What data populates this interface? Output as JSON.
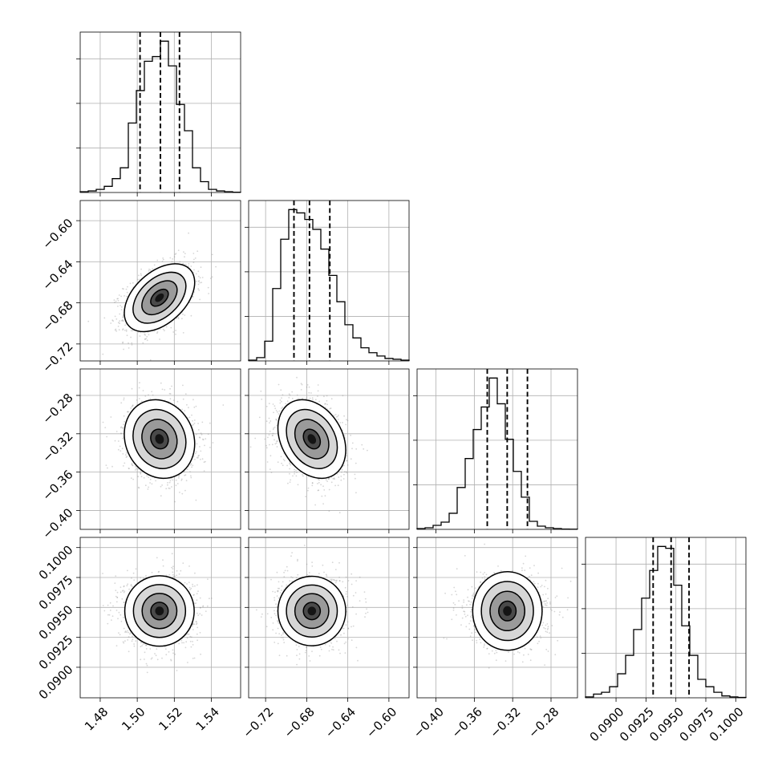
{
  "chart_data": {
    "type": "scatter",
    "parameters": [
      {
        "range": [
          1.4692,
          1.5558
        ],
        "ticks": [
          1.48,
          1.5,
          1.52,
          1.54
        ],
        "ticklabels": [
          "1.48",
          "1.50",
          "1.52",
          "1.54"
        ],
        "mean": 1.512,
        "sd": 0.0095,
        "quantiles": [
          1.5015,
          1.5125,
          1.5228
        ]
      },
      {
        "range": [
          -0.7365,
          -0.5804
        ],
        "ticks": [
          -0.72,
          -0.68,
          -0.64,
          -0.6
        ],
        "ticklabels": [
          "−0.72",
          "−0.68",
          "−0.64",
          "−0.60"
        ],
        "mean": -0.675,
        "sd": 0.0165,
        "quantiles": [
          -0.6924,
          -0.6773,
          -0.6575
        ]
      },
      {
        "range": [
          -0.4197,
          -0.2524
        ],
        "ticks": [
          -0.4,
          -0.36,
          -0.32,
          -0.28
        ],
        "ticklabels": [
          "−0.40",
          "−0.36",
          "−0.32",
          "−0.28"
        ],
        "mean": -0.3255,
        "sd": 0.0205,
        "quantiles": [
          -0.3465,
          -0.3257,
          -0.3046
        ]
      },
      {
        "range": [
          0.08745,
          0.10085
        ],
        "ticks": [
          0.09,
          0.0925,
          0.095,
          0.0975,
          0.1
        ],
        "ticklabels": [
          "0.0900",
          "0.0925",
          "0.0950",
          "0.0975",
          "0.1000"
        ],
        "mean": 0.0947,
        "sd": 0.00145,
        "quantiles": [
          0.0931,
          0.0946,
          0.0961
        ]
      }
    ],
    "correlations": [
      [
        1,
        0.45,
        -0.12,
        0.0
      ],
      [
        0.45,
        1,
        -0.28,
        0.0
      ],
      [
        -0.12,
        -0.28,
        1,
        0.0
      ],
      [
        0.0,
        0.0,
        0.0,
        1
      ]
    ],
    "histograms": [
      [
        0.005,
        0.01,
        0.02,
        0.04,
        0.09,
        0.16,
        0.45,
        0.66,
        0.85,
        0.88,
        0.98,
        0.82,
        0.57,
        0.4,
        0.16,
        0.07,
        0.02,
        0.01,
        0.005,
        0.002
      ],
      [
        0.005,
        0.02,
        0.12,
        0.44,
        0.74,
        0.92,
        0.9,
        0.86,
        0.8,
        0.68,
        0.52,
        0.36,
        0.22,
        0.14,
        0.08,
        0.05,
        0.03,
        0.015,
        0.01,
        0.005
      ],
      [
        0.005,
        0.01,
        0.025,
        0.045,
        0.1,
        0.26,
        0.44,
        0.62,
        0.76,
        0.94,
        0.78,
        0.56,
        0.36,
        0.2,
        0.05,
        0.02,
        0.01,
        0.005,
        0.002,
        0.001
      ],
      [
        0.005,
        0.02,
        0.03,
        0.06,
        0.13,
        0.23,
        0.37,
        0.54,
        0.69,
        0.82,
        0.81,
        0.61,
        0.39,
        0.23,
        0.1,
        0.06,
        0.03,
        0.01,
        0.005,
        0.002
      ]
    ],
    "contour_levels_sigma": [
      0.5,
      1.0,
      1.5,
      2.0
    ],
    "quantile_levels": [
      0.16,
      0.5,
      0.84
    ],
    "grid": true,
    "title": "",
    "legend": "none"
  }
}
